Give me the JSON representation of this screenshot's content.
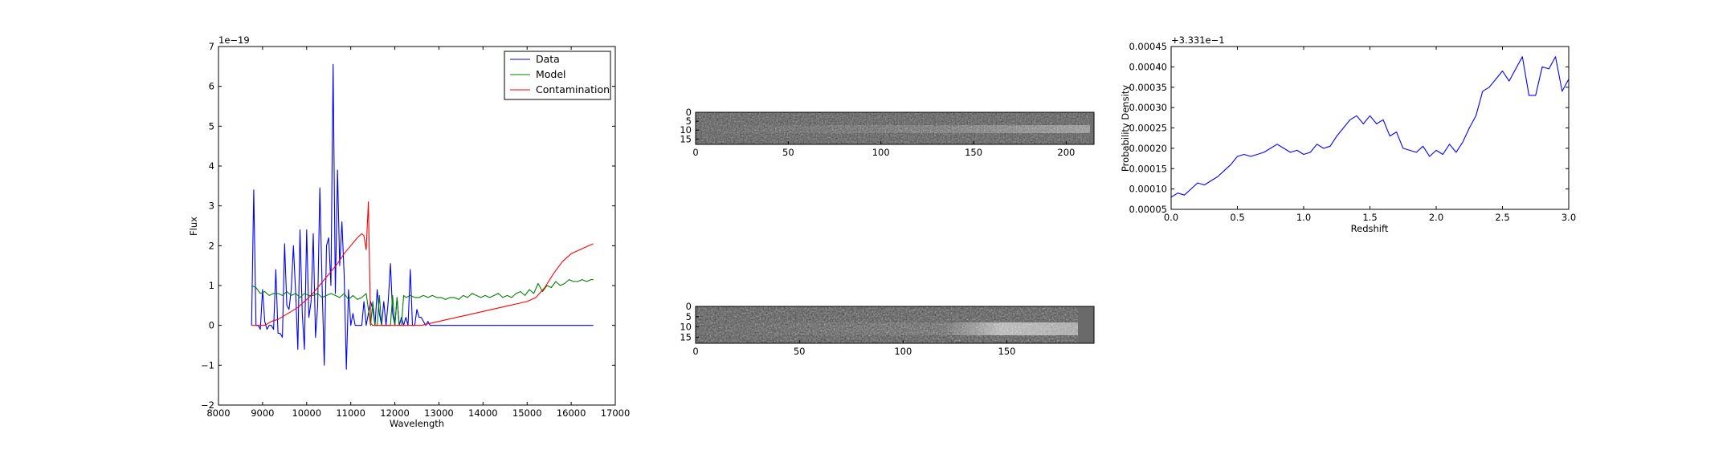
{
  "chart_data": [
    {
      "type": "line",
      "xlabel": "Wavelength",
      "ylabel": "Flux",
      "offset_label": "1e−19",
      "xlim": [
        8000,
        17000
      ],
      "ylim": [
        -2,
        7
      ],
      "xticks": [
        8000,
        9000,
        10000,
        11000,
        12000,
        13000,
        14000,
        15000,
        16000,
        17000
      ],
      "yticks": [
        -2,
        -1,
        0,
        1,
        2,
        3,
        4,
        5,
        6,
        7
      ],
      "legend_position": "top-right",
      "series": [
        {
          "name": "Data",
          "color": "#0000ff",
          "x": [
            8750,
            8800,
            8850,
            8900,
            8950,
            9000,
            9050,
            9100,
            9150,
            9200,
            9250,
            9300,
            9350,
            9400,
            9450,
            9500,
            9550,
            9600,
            9650,
            9700,
            9750,
            9800,
            9850,
            9900,
            9950,
            10000,
            10050,
            10100,
            10150,
            10200,
            10250,
            10300,
            10350,
            10400,
            10450,
            10500,
            10550,
            10600,
            10650,
            10700,
            10750,
            10800,
            10850,
            10900,
            10950,
            11000,
            11050,
            11100,
            11150,
            11200,
            11250,
            11300,
            11350,
            11400,
            11450,
            11500,
            11550,
            11600,
            11650,
            11700,
            11750,
            11800,
            11850,
            11900,
            11950,
            12000,
            12050,
            12100,
            12150,
            12200,
            12250,
            12300,
            12350,
            12400,
            12450,
            12500,
            12550,
            12600,
            12650,
            12700,
            12750,
            12800,
            12850,
            12900,
            12950,
            13000,
            13050,
            13100,
            13150,
            13200,
            13250,
            13300,
            13350,
            13400,
            13450,
            13500,
            13550,
            13600,
            13650,
            13700,
            13750,
            13800,
            13850,
            13900,
            13950,
            14000,
            14050,
            14100,
            14150,
            14200,
            14250,
            14300,
            14350,
            14400,
            14450,
            14500,
            14550,
            14600,
            14650,
            14700,
            14750,
            14800,
            14850,
            14900,
            14950,
            15000,
            15050,
            15100,
            15150,
            15200,
            15250,
            15300,
            15350,
            15400,
            15450,
            15500,
            15550,
            15600,
            15650,
            15700,
            15750,
            15800,
            15850,
            15900,
            15950,
            16000,
            16050,
            16100,
            16150,
            16200,
            16250,
            16300,
            16350,
            16400,
            16450,
            16500
          ],
          "y": [
            0.0,
            3.4,
            0.0,
            0.0,
            -0.1,
            0.9,
            0.1,
            -0.1,
            0.0,
            0.0,
            -0.1,
            1.4,
            -0.2,
            -0.2,
            -0.3,
            2.05,
            0.5,
            0.4,
            0.9,
            2.0,
            0.8,
            -0.6,
            2.4,
            0.3,
            -0.6,
            2.4,
            0.2,
            0.6,
            2.3,
            -0.3,
            0.5,
            3.45,
            1.0,
            -1.0,
            2.0,
            2.2,
            1.0,
            6.55,
            0.8,
            3.9,
            1.5,
            2.6,
            1.3,
            -1.1,
            0.9,
            0.0,
            0.3,
            0.0,
            0.0,
            0.0,
            0.0,
            0.6,
            0.0,
            0.3,
            0.6,
            0.4,
            0.0,
            0.9,
            0.3,
            0.0,
            0.6,
            0.0,
            0.6,
            1.55,
            0.3,
            0.0,
            0.7,
            0.0,
            0.2,
            0.0,
            0.2,
            0.0,
            1.4,
            0.0,
            0.0,
            0.4,
            0.2,
            0.2,
            0.1,
            0.0,
            0.1,
            0.0,
            0.0,
            0.0,
            0.0,
            0.0,
            0.0,
            0.0,
            0.0,
            0.0,
            0.0,
            0.0,
            0.0,
            0.0,
            0.0,
            0.0,
            0.0,
            0.0,
            0.0,
            0.0,
            0.0,
            0.0,
            0.0,
            0.0,
            0.0,
            0.0,
            0.0,
            0.0,
            0.0,
            0.0,
            0.0,
            0.0,
            0.0,
            0.0,
            0.0,
            0.0,
            0.0,
            0.0,
            0.0,
            0.0,
            0.0,
            0.0,
            0.0,
            0.0,
            0.0,
            0.0,
            0.0,
            0.0,
            0.0,
            0.0,
            0.0,
            0.0,
            0.0,
            0.0,
            0.0,
            0.0,
            0.0,
            0.0,
            0.0,
            0.0,
            0.0,
            0.0,
            0.0,
            0.0,
            0.0,
            0.0,
            0.0,
            0.0,
            0.0,
            0.0,
            0.0,
            0.0,
            0.0,
            0.0,
            0.0,
            0.0
          ]
        },
        {
          "name": "Model",
          "color": "#008000",
          "x": [
            8750,
            8850,
            8950,
            9050,
            9150,
            9250,
            9350,
            9450,
            9550,
            9650,
            9750,
            9850,
            9950,
            10050,
            10150,
            10250,
            10350,
            10450,
            10550,
            10650,
            10750,
            10850,
            10950,
            11050,
            11150,
            11250,
            11350,
            11450,
            11500,
            11550,
            11600,
            11650,
            11700,
            11750,
            11800,
            11850,
            11900,
            11950,
            12000,
            12050,
            12100,
            12150,
            12200,
            12250,
            12350,
            12450,
            12550,
            12650,
            12750,
            12850,
            12950,
            13050,
            13150,
            13250,
            13350,
            13450,
            13550,
            13650,
            13750,
            13850,
            13950,
            14050,
            14150,
            14250,
            14350,
            14450,
            14550,
            14650,
            14750,
            14850,
            14950,
            15050,
            15150,
            15250,
            15350,
            15450,
            15550,
            15650,
            15750,
            15850,
            15950,
            16050,
            16150,
            16250,
            16350,
            16450,
            16500
          ],
          "y": [
            1.0,
            0.95,
            0.8,
            0.85,
            0.75,
            0.8,
            0.8,
            0.75,
            0.85,
            0.75,
            0.8,
            0.7,
            0.8,
            0.75,
            0.75,
            0.8,
            0.7,
            0.75,
            0.8,
            0.75,
            0.7,
            0.8,
            0.65,
            0.75,
            0.65,
            0.7,
            0.8,
            0.0,
            0.6,
            0.0,
            0.0,
            0.75,
            0.0,
            0.0,
            0.0,
            0.0,
            0.0,
            0.75,
            0.0,
            0.7,
            0.0,
            0.0,
            0.75,
            0.7,
            0.75,
            0.7,
            0.7,
            0.75,
            0.7,
            0.75,
            0.7,
            0.7,
            0.65,
            0.7,
            0.7,
            0.65,
            0.75,
            0.7,
            0.8,
            0.75,
            0.7,
            0.75,
            0.7,
            0.75,
            0.8,
            0.7,
            0.75,
            0.7,
            0.8,
            0.85,
            0.75,
            0.9,
            0.8,
            1.05,
            0.85,
            1.0,
            0.95,
            1.1,
            1.0,
            1.05,
            1.15,
            1.1,
            1.1,
            1.15,
            1.1,
            1.15,
            1.15
          ]
        },
        {
          "name": "Contamination",
          "color": "#ff0000",
          "x": [
            8750,
            8900,
            9050,
            9200,
            9350,
            9500,
            9650,
            9800,
            9950,
            10100,
            10250,
            10400,
            10550,
            10700,
            10850,
            11000,
            11150,
            11250,
            11300,
            11350,
            11400,
            11450,
            11500,
            11650,
            11800,
            12000,
            12200,
            12400,
            12600,
            12800,
            13000,
            13200,
            13400,
            13600,
            13800,
            14000,
            14200,
            14400,
            14600,
            14800,
            15000,
            15200,
            15400,
            15600,
            15800,
            16000,
            16200,
            16400,
            16500
          ],
          "y": [
            0.0,
            0.0,
            0.0,
            0.1,
            0.15,
            0.25,
            0.35,
            0.45,
            0.6,
            0.75,
            0.95,
            1.15,
            1.35,
            1.55,
            1.8,
            2.0,
            2.2,
            2.3,
            2.25,
            1.9,
            3.1,
            0.05,
            0.0,
            0.0,
            0.0,
            0.0,
            0.0,
            0.0,
            0.0,
            0.05,
            0.1,
            0.15,
            0.2,
            0.25,
            0.3,
            0.35,
            0.4,
            0.45,
            0.5,
            0.55,
            0.6,
            0.7,
            0.95,
            1.3,
            1.6,
            1.8,
            1.9,
            2.0,
            2.05
          ]
        }
      ]
    },
    {
      "type": "heatmap",
      "xlim": [
        0,
        215
      ],
      "ylim": [
        18,
        0
      ],
      "xticks": [
        0,
        50,
        100,
        150,
        200
      ],
      "yticks": [
        0,
        5,
        10,
        15
      ],
      "colormap": "gray"
    },
    {
      "type": "heatmap",
      "xlim": [
        0,
        192
      ],
      "ylim": [
        18,
        0
      ],
      "xticks": [
        0,
        50,
        100,
        150
      ],
      "yticks": [
        0,
        5,
        10,
        15
      ],
      "colormap": "gray"
    },
    {
      "type": "line",
      "xlabel": "Redshift",
      "ylabel": "Probability Density",
      "offset_label": "+3.331e−1",
      "xlim": [
        0.0,
        3.0
      ],
      "ylim": [
        5e-05,
        0.00045
      ],
      "xticks": [
        0.0,
        0.5,
        1.0,
        1.5,
        2.0,
        2.5,
        3.0
      ],
      "xtick_labels": [
        "0.0",
        "0.5",
        "1.0",
        "1.5",
        "2.0",
        "2.5",
        "3.0"
      ],
      "yticks": [
        5e-05,
        0.0001,
        0.00015,
        0.0002,
        0.00025,
        0.0003,
        0.00035,
        0.0004,
        0.00045
      ],
      "ytick_labels": [
        "0.00005",
        "0.00010",
        "0.00015",
        "0.00020",
        "0.00025",
        "0.00030",
        "0.00035",
        "0.00040",
        "0.00045"
      ],
      "series": [
        {
          "color": "#0000ff",
          "x": [
            0.0,
            0.05,
            0.1,
            0.15,
            0.2,
            0.25,
            0.3,
            0.35,
            0.4,
            0.45,
            0.5,
            0.55,
            0.6,
            0.65,
            0.7,
            0.75,
            0.8,
            0.85,
            0.9,
            0.95,
            1.0,
            1.05,
            1.1,
            1.15,
            1.2,
            1.25,
            1.3,
            1.35,
            1.4,
            1.45,
            1.5,
            1.55,
            1.6,
            1.65,
            1.7,
            1.75,
            1.8,
            1.85,
            1.9,
            1.95,
            2.0,
            2.05,
            2.1,
            2.15,
            2.2,
            2.25,
            2.3,
            2.35,
            2.4,
            2.45,
            2.5,
            2.55,
            2.6,
            2.65,
            2.7,
            2.75,
            2.8,
            2.85,
            2.9,
            2.95,
            3.0
          ],
          "y": [
            8e-05,
            9e-05,
            8.5e-05,
            0.0001,
            0.000115,
            0.00011,
            0.00012,
            0.00013,
            0.000145,
            0.00016,
            0.00018,
            0.000185,
            0.00018,
            0.000185,
            0.00019,
            0.0002,
            0.00021,
            0.0002,
            0.00019,
            0.000195,
            0.000185,
            0.00019,
            0.00021,
            0.0002,
            0.000205,
            0.00023,
            0.00025,
            0.00027,
            0.00028,
            0.00026,
            0.00028,
            0.00026,
            0.00027,
            0.00023,
            0.00024,
            0.0002,
            0.000195,
            0.00019,
            0.000205,
            0.00018,
            0.000195,
            0.000185,
            0.00021,
            0.00019,
            0.000215,
            0.00025,
            0.00028,
            0.00034,
            0.00035,
            0.00037,
            0.00039,
            0.000365,
            0.000395,
            0.000425,
            0.00033,
            0.00033,
            0.0004,
            0.000395,
            0.000425,
            0.00034,
            0.00037
          ]
        }
      ]
    }
  ]
}
